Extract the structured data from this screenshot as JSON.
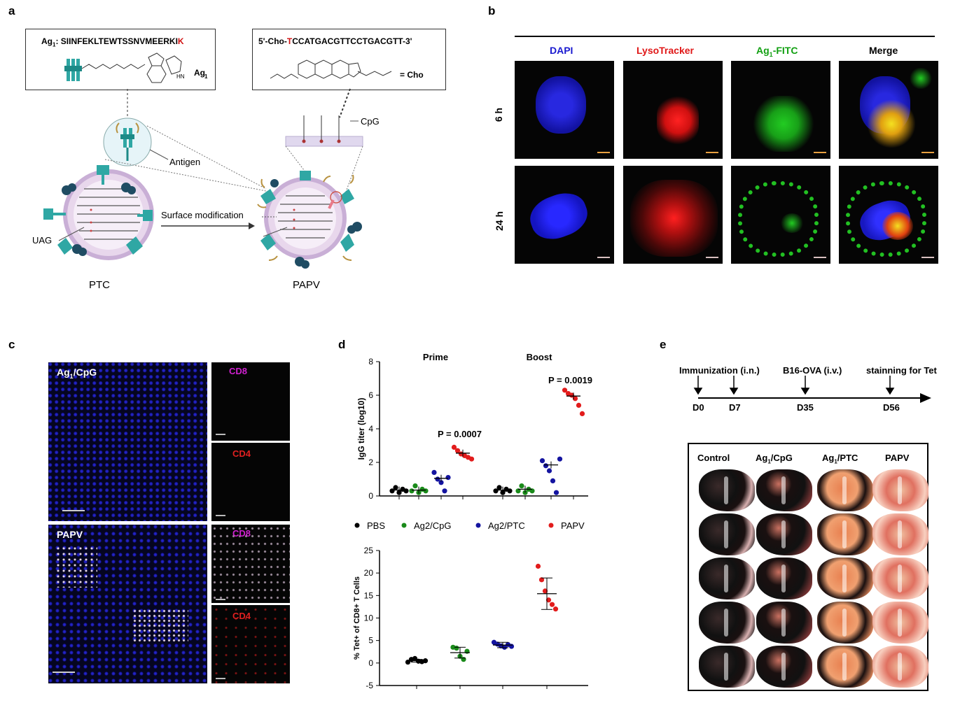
{
  "panels": {
    "a": "a",
    "b": "b",
    "c": "c",
    "d": "d",
    "e": "e"
  },
  "panel_a": {
    "ag1_prefix": "Ag",
    "ag1_sub": "1",
    "ag1_sequence": ": SIINFEKLTEWTSSNVMEERKI",
    "ag1_last": "K",
    "ag1_label": "Ag",
    "ag1_label_sub": "1",
    "cho_seq_prefix": "5'-Cho-",
    "cho_seq_T": "T",
    "cho_seq_rest": "CCATGACGTTCCTGACGTT-3'",
    "cho_equals": "= Cho",
    "cpg": "CpG",
    "antigen": "Antigen",
    "uag": "UAG",
    "surface_mod": "Surface modification",
    "ptc": "PTC",
    "papv": "PAPV"
  },
  "panel_b": {
    "col_dapi": "DAPI",
    "col_lyso": "LysoTracker",
    "col_ag1_prefix": "Ag",
    "col_ag1_sub": "1",
    "col_ag1_suffix": "-FITC",
    "col_merge": "Merge",
    "row_6h": "6 h",
    "row_24h": "24 h"
  },
  "panel_c": {
    "top_label_prefix": "Ag",
    "top_label_sub": "1",
    "top_label_suffix": "/CpG",
    "bottom_label": "PAPV",
    "cd8": "CD8",
    "cd4": "CD4"
  },
  "panel_e": {
    "timeline": [
      "Immunization (i.n.)",
      "B16-OVA (i.v.)",
      "stainning for Tet"
    ],
    "days": [
      "D0",
      "D7",
      "D35",
      "D56"
    ],
    "groups": [
      "Control",
      "Ag",
      "Ag",
      "PAPV"
    ],
    "group_subs": [
      "",
      "1",
      "1",
      ""
    ],
    "group_suffixes": [
      "",
      "/CpG",
      "/PTC",
      ""
    ]
  },
  "chart_data": [
    {
      "type": "scatter",
      "ylabel": "IgG titer (log10)",
      "ylim": [
        0,
        8
      ],
      "yticks": [
        "0",
        "2",
        "4",
        "6",
        "8"
      ],
      "groups_title": [
        "Prime",
        "Boost"
      ],
      "annotations": [
        "P = 0.0007",
        "P = 0.0019"
      ],
      "series": [
        {
          "name": "PBS",
          "color": "#000000",
          "prime": [
            0.3,
            0.5,
            0.2,
            0.4,
            0.3
          ],
          "boost": [
            0.3,
            0.5,
            0.2,
            0.4,
            0.3
          ]
        },
        {
          "name": "Ag2/CpG",
          "color": "#1a8a1a",
          "prime": [
            0.3,
            0.6,
            0.2,
            0.4,
            0.3
          ],
          "boost": [
            0.3,
            0.6,
            0.2,
            0.4,
            0.3
          ]
        },
        {
          "name": "Ag2/PTC",
          "color": "#1414a0",
          "prime": [
            1.4,
            1.0,
            0.8,
            0.3,
            1.1
          ],
          "boost": [
            2.1,
            1.8,
            1.5,
            0.9,
            0.2,
            2.2
          ]
        },
        {
          "name": "PAPV",
          "color": "#e21c1c",
          "prime": [
            2.9,
            2.7,
            2.5,
            2.4,
            2.3,
            2.2
          ],
          "boost": [
            6.3,
            6.1,
            6.0,
            5.8,
            5.4,
            4.9
          ]
        }
      ],
      "means": {
        "prime": [
          0.35,
          0.35,
          1.05,
          2.55
        ],
        "boost": [
          0.35,
          0.4,
          1.85,
          5.95
        ]
      },
      "legend": [
        "PBS",
        "Ag2/CpG",
        "Ag2/PTC",
        "PAPV"
      ],
      "legend_sub": [
        "",
        "2",
        "2",
        ""
      ]
    },
    {
      "type": "scatter",
      "ylabel": "% Tet+ of CD8+ T Cells",
      "ylim": [
        -5,
        25
      ],
      "yticks": [
        "-5",
        "0",
        "5",
        "10",
        "15",
        "20",
        "25"
      ],
      "series": [
        {
          "name": "PBS",
          "color": "#000000",
          "values": [
            0.2,
            0.8,
            1.0,
            0.4,
            0.3,
            0.5
          ]
        },
        {
          "name": "Ag2/CpG",
          "color": "#1a8a1a",
          "values": [
            3.5,
            3.3,
            1.5,
            0.8,
            2.6
          ]
        },
        {
          "name": "Ag2/PTC",
          "color": "#1414a0",
          "values": [
            4.6,
            4.2,
            3.8,
            3.5,
            4.1,
            3.7
          ]
        },
        {
          "name": "PAPV",
          "color": "#e21c1c",
          "values": [
            21.5,
            18.5,
            16.0,
            14.0,
            13.0,
            12.0
          ]
        }
      ],
      "means": [
        0.5,
        2.3,
        4.0,
        15.4
      ],
      "sem": [
        0.3,
        1.2,
        0.6,
        3.5
      ]
    }
  ]
}
